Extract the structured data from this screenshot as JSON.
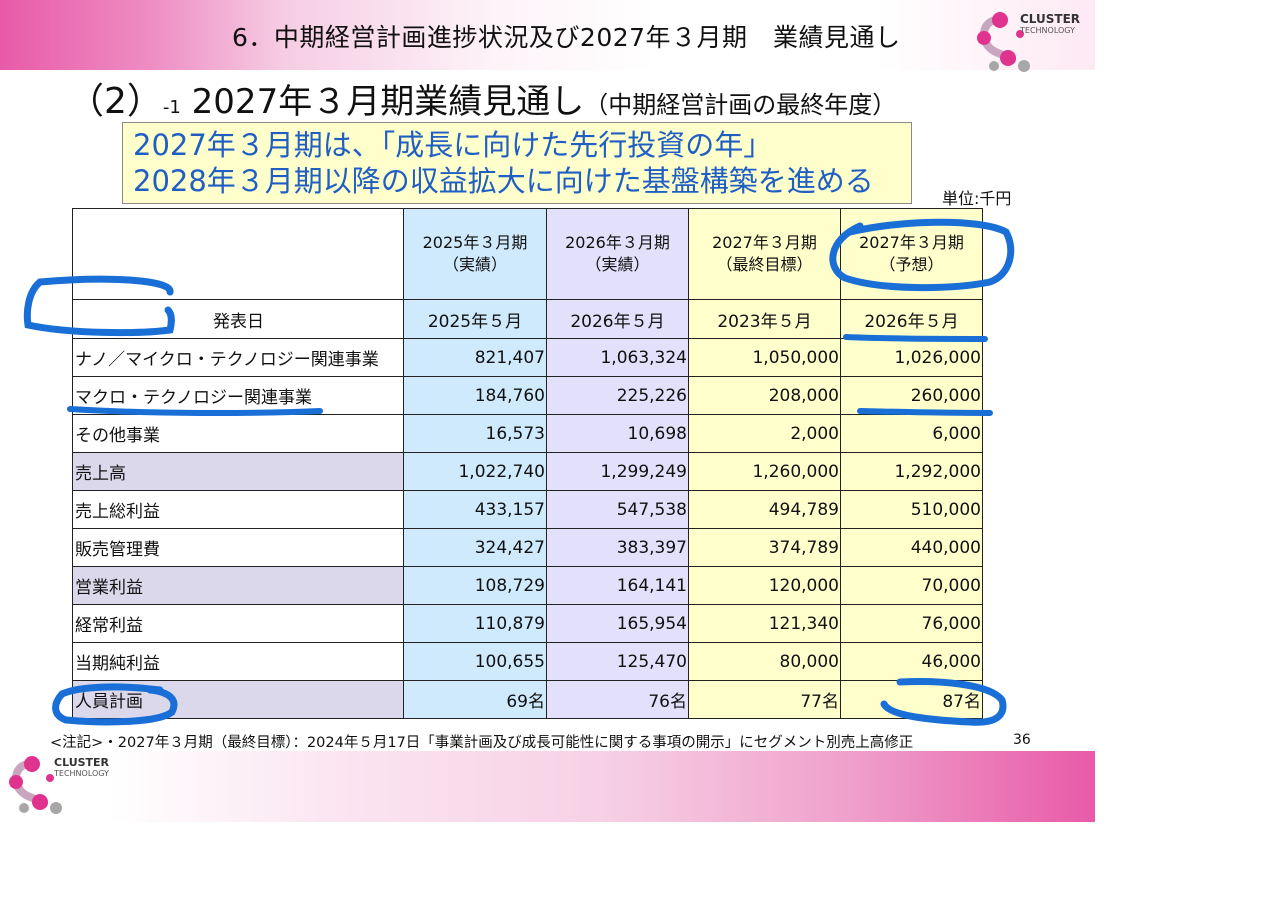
{
  "header": {
    "title": "6．中期経営計画進捗状況及び2027年３月期　業績見通し"
  },
  "logo": {
    "name": "CLUSTER",
    "sub": "TECHNOLOGY"
  },
  "subtitle": {
    "paren": "（2）",
    "small": "-1",
    "main": " 2027年３月期業績見通し",
    "side": "（中期経営計画の最終年度）"
  },
  "highlight": {
    "line1": "2027年３月期は、「成長に向けた先行投資の年」",
    "line2": "2028年３月期以降の収益拡大に向けた基盤構築を進める"
  },
  "unit": "単位:千円",
  "table": {
    "columns": [
      {
        "line1": "2025年３月期",
        "line2": "（実績）"
      },
      {
        "line1": "2026年３月期",
        "line2": "（実績）"
      },
      {
        "line1": "2027年３月期",
        "line2": "（最終目標）"
      },
      {
        "line1": "2027年３月期",
        "line2": "（予想）"
      }
    ],
    "date_row": {
      "label": "発表日",
      "values": [
        "2025年５月",
        "2026年５月",
        "2023年５月",
        "2026年５月"
      ]
    },
    "rows": [
      {
        "label": "ナノ／マイクロ・テクノロジー関連事業",
        "values": [
          "821,407",
          "1,063,324",
          "1,050,000",
          "1,026,000"
        ]
      },
      {
        "label": "マクロ・テクノロジー関連事業",
        "values": [
          "184,760",
          "225,226",
          "208,000",
          "260,000"
        ]
      },
      {
        "label": "その他事業",
        "values": [
          "16,573",
          "10,698",
          "2,000",
          "6,000"
        ]
      },
      {
        "label": "売上高",
        "values": [
          "1,022,740",
          "1,299,249",
          "1,260,000",
          "1,292,000"
        ]
      },
      {
        "label": "売上総利益",
        "values": [
          "433,157",
          "547,538",
          "494,789",
          "510,000"
        ]
      },
      {
        "label": "販売管理費",
        "values": [
          "324,427",
          "383,397",
          "374,789",
          "440,000"
        ]
      },
      {
        "label": "営業利益",
        "values": [
          "108,729",
          "164,141",
          "120,000",
          "70,000"
        ]
      },
      {
        "label": "経常利益",
        "values": [
          "110,879",
          "165,954",
          "121,340",
          "76,000"
        ]
      },
      {
        "label": "当期純利益",
        "values": [
          "100,655",
          "125,470",
          "80,000",
          "46,000"
        ]
      },
      {
        "label": "人員計画",
        "values": [
          "69名",
          "76名",
          "77名",
          "87名"
        ]
      }
    ]
  },
  "note": "<注記>・2027年３月期（最終目標）：2024年５月17日「事業計画及び成長可能性に関する事項の開示」にセグメント別売上高修正",
  "page_number": "36",
  "colors": {
    "brand_pink": "#e85aa8",
    "annotation_blue": "#1a6fd6",
    "text_blue": "#1f5fc4"
  }
}
